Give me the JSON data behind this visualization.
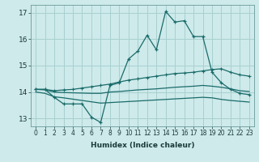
{
  "xlabel": "Humidex (Indice chaleur)",
  "background_color": "#ceeaea",
  "grid_color": "#a8d0d0",
  "line_color": "#1a6b6b",
  "xlim": [
    -0.5,
    23.5
  ],
  "ylim": [
    12.7,
    17.3
  ],
  "yticks": [
    13,
    14,
    15,
    16,
    17
  ],
  "xticks": [
    0,
    1,
    2,
    3,
    4,
    5,
    6,
    7,
    8,
    9,
    10,
    11,
    12,
    13,
    14,
    15,
    16,
    17,
    18,
    19,
    20,
    21,
    22,
    23
  ],
  "series": {
    "main": [
      14.1,
      14.1,
      13.8,
      13.55,
      13.55,
      13.55,
      13.05,
      12.85,
      14.25,
      14.35,
      15.25,
      15.55,
      16.15,
      15.6,
      17.05,
      16.65,
      16.7,
      16.1,
      16.1,
      14.75,
      14.35,
      14.1,
      13.95,
      13.9
    ],
    "upper": [
      14.1,
      14.1,
      14.05,
      14.08,
      14.1,
      14.15,
      14.2,
      14.25,
      14.3,
      14.38,
      14.45,
      14.5,
      14.55,
      14.6,
      14.65,
      14.7,
      14.72,
      14.75,
      14.8,
      14.85,
      14.88,
      14.75,
      14.65,
      14.6
    ],
    "middle": [
      14.1,
      14.08,
      14.0,
      13.98,
      13.97,
      13.96,
      13.95,
      13.95,
      14.0,
      14.02,
      14.05,
      14.08,
      14.1,
      14.12,
      14.15,
      14.18,
      14.2,
      14.22,
      14.25,
      14.22,
      14.18,
      14.12,
      14.05,
      14.02
    ],
    "lower": [
      14.0,
      13.95,
      13.82,
      13.78,
      13.73,
      13.68,
      13.63,
      13.58,
      13.6,
      13.62,
      13.64,
      13.66,
      13.68,
      13.7,
      13.72,
      13.74,
      13.76,
      13.78,
      13.8,
      13.78,
      13.72,
      13.68,
      13.65,
      13.62
    ]
  }
}
